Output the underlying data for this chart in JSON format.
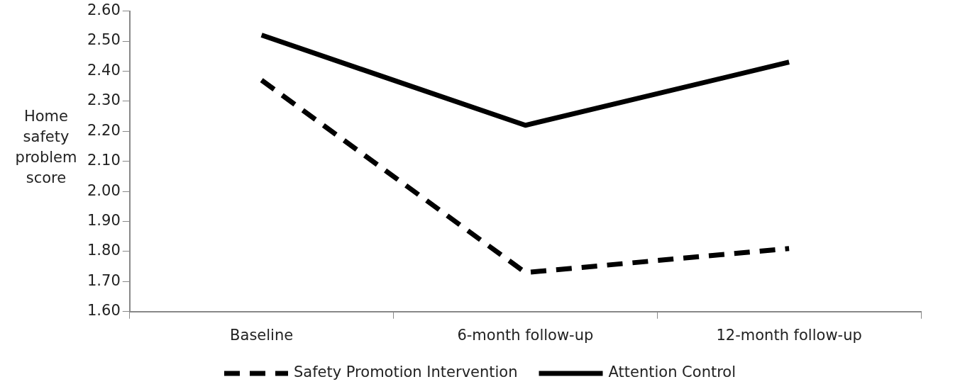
{
  "chart_data": {
    "type": "line",
    "ylabel": "Home safety problem score",
    "categories": [
      "Baseline",
      "6-month follow-up",
      "12-month follow-up"
    ],
    "series": [
      {
        "name": "Safety Promotion Intervention",
        "color": "#000000",
        "line_style": "dashed",
        "values": [
          2.37,
          1.73,
          1.81
        ]
      },
      {
        "name": "Attention Control",
        "color": "#000000",
        "line_style": "solid",
        "values": [
          2.52,
          2.22,
          2.43
        ]
      }
    ],
    "ylim": [
      1.6,
      2.6
    ],
    "yticks": [
      {
        "value": 1.6,
        "label": "1.60"
      },
      {
        "value": 1.7,
        "label": "1.70"
      },
      {
        "value": 1.8,
        "label": "1.80"
      },
      {
        "value": 1.9,
        "label": "1.90"
      },
      {
        "value": 2.0,
        "label": "2.00"
      },
      {
        "value": 2.1,
        "label": "2.10"
      },
      {
        "value": 2.2,
        "label": "2.20"
      },
      {
        "value": 2.3,
        "label": "2.30"
      },
      {
        "value": 2.4,
        "label": "2.40"
      },
      {
        "value": 2.5,
        "label": "2.50"
      },
      {
        "value": 2.6,
        "label": "2.60"
      }
    ],
    "grid": false,
    "legend": "bottom",
    "marker": "none"
  }
}
